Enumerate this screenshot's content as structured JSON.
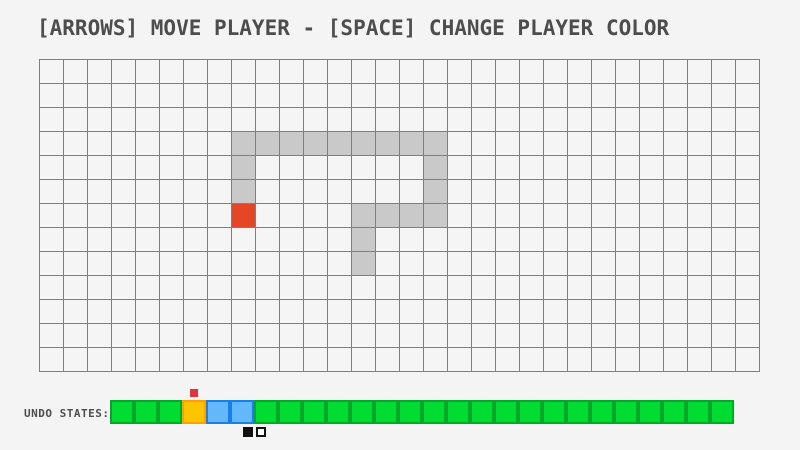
{
  "title": "[ARROWS] MOVE PLAYER - [SPACE] CHANGE PLAYER COLOR",
  "board": {
    "cols": 30,
    "rows": 13,
    "cell_size": 24,
    "line_color": "#7f7f7f",
    "cell_fill": "#f5f5f5",
    "trail_color": "#c9c9c9",
    "trail_cells": [
      [
        8,
        3
      ],
      [
        9,
        3
      ],
      [
        10,
        3
      ],
      [
        11,
        3
      ],
      [
        12,
        3
      ],
      [
        13,
        3
      ],
      [
        14,
        3
      ],
      [
        15,
        3
      ],
      [
        16,
        3
      ],
      [
        8,
        4
      ],
      [
        8,
        5
      ],
      [
        16,
        4
      ],
      [
        16,
        5
      ],
      [
        16,
        6
      ],
      [
        13,
        6
      ],
      [
        14,
        6
      ],
      [
        15,
        6
      ],
      [
        13,
        7
      ],
      [
        13,
        8
      ]
    ],
    "player": {
      "col": 8,
      "row": 6,
      "color": "#e54726"
    }
  },
  "undo_bar": {
    "label": "UNDO STATES:",
    "cells": [
      "green",
      "green",
      "green",
      "orange",
      "blue",
      "blue",
      "green",
      "green",
      "green",
      "green",
      "green",
      "green",
      "green",
      "green",
      "green",
      "green",
      "green",
      "green",
      "green",
      "green",
      "green",
      "green",
      "green",
      "green",
      "green",
      "green"
    ],
    "palette": {
      "green": {
        "fill": "#00dc32",
        "border": "#00a827"
      },
      "orange": {
        "fill": "#ffc400",
        "border": "#ffa000"
      },
      "blue": {
        "fill": "#62b8fb",
        "border": "#1b7fe8"
      }
    },
    "pointer": {
      "cell_index": 3,
      "color": "#e2353f"
    },
    "color_swatches": {
      "cell_index": 5,
      "items": [
        "black",
        "white"
      ]
    }
  }
}
